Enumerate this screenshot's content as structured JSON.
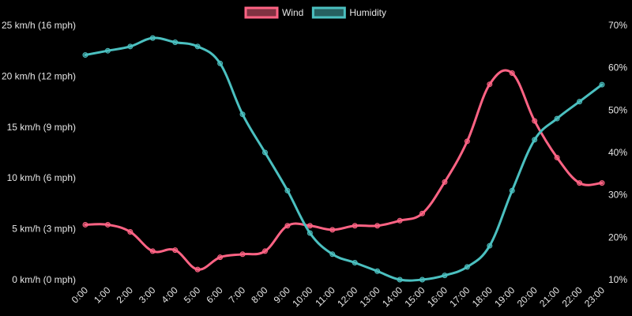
{
  "chart_data": {
    "type": "line",
    "categories": [
      "0:00",
      "1:00",
      "2:00",
      "3:00",
      "4:00",
      "5:00",
      "6:00",
      "7:00",
      "8:00",
      "9:00",
      "10:00",
      "11:00",
      "12:00",
      "13:00",
      "14:00",
      "15:00",
      "16:00",
      "17:00",
      "18:00",
      "19:00",
      "20:00",
      "21:00",
      "22:00",
      "23:00"
    ],
    "series": [
      {
        "name": "Wind",
        "axis": "left",
        "color": "#ff6384",
        "values": [
          5.4,
          5.4,
          4.7,
          2.8,
          2.9,
          1.0,
          2.2,
          2.5,
          2.8,
          5.3,
          5.3,
          4.9,
          5.3,
          5.3,
          5.8,
          6.5,
          9.6,
          13.6,
          19.2,
          20.3,
          15.6,
          12.0,
          9.5,
          9.5
        ]
      },
      {
        "name": "Humidity",
        "axis": "right",
        "color": "#4bc0c0",
        "values": [
          63,
          64,
          65,
          67,
          66,
          65,
          61,
          49,
          40,
          31,
          21,
          16,
          14,
          12,
          10,
          10,
          11,
          13,
          18,
          31,
          43,
          48,
          52,
          56
        ]
      }
    ],
    "y_left": {
      "ylim": [
        0,
        25
      ],
      "ticks": [
        0,
        5,
        10,
        15,
        20,
        25
      ],
      "tick_labels": [
        "0 km/h (0 mph)",
        "5 km/h (3 mph)",
        "10 km/h (6 mph)",
        "15 km/h (9 mph)",
        "20 km/h (12 mph)",
        "25 km/h (16 mph)"
      ]
    },
    "y_right": {
      "ylim": [
        10,
        70
      ],
      "ticks": [
        10,
        20,
        30,
        40,
        50,
        60,
        70
      ],
      "tick_labels": [
        "10%",
        "20%",
        "30%",
        "40%",
        "50%",
        "60%",
        "70%"
      ]
    },
    "legend": {
      "position": "top-center"
    },
    "grid": false,
    "background": "#000000"
  }
}
